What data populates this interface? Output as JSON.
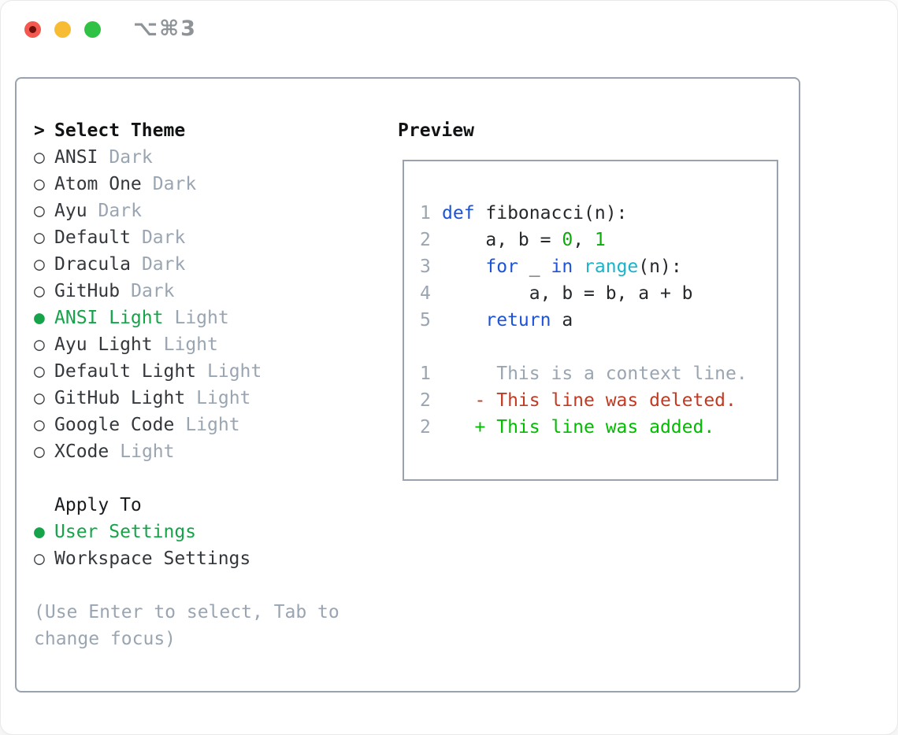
{
  "window": {
    "shortcut_label": "⌥⌘3"
  },
  "traffic_lights": {
    "close_color": "#f3594f",
    "minimize_color": "#f8bb34",
    "maximize_color": "#2fc245"
  },
  "colors": {
    "panel_border": "#99a3af",
    "accent_green": "#16a34a",
    "muted_gray": "#9aa5b2",
    "keyword_blue": "#1d53d8",
    "builtin_cyan": "#1ab3c9",
    "number_green": "#0cab0c",
    "diff_red": "#c23a22",
    "diff_add_green": "#00bd00"
  },
  "theme_panel": {
    "prompt": ">",
    "title": "Select Theme",
    "items": [
      {
        "bullet": "○",
        "name": "ANSI",
        "variant": "Dark",
        "selected": false
      },
      {
        "bullet": "○",
        "name": "Atom One",
        "variant": "Dark",
        "selected": false
      },
      {
        "bullet": "○",
        "name": "Ayu",
        "variant": "Dark",
        "selected": false
      },
      {
        "bullet": "○",
        "name": "Default",
        "variant": "Dark",
        "selected": false
      },
      {
        "bullet": "○",
        "name": "Dracula",
        "variant": "Dark",
        "selected": false
      },
      {
        "bullet": "○",
        "name": "GitHub",
        "variant": "Dark",
        "selected": false
      },
      {
        "bullet": "●",
        "name": "ANSI Light",
        "variant": "Light",
        "selected": true
      },
      {
        "bullet": "○",
        "name": "Ayu Light",
        "variant": "Light",
        "selected": false
      },
      {
        "bullet": "○",
        "name": "Default Light",
        "variant": "Light",
        "selected": false
      },
      {
        "bullet": "○",
        "name": "GitHub Light",
        "variant": "Light",
        "selected": false
      },
      {
        "bullet": "○",
        "name": "Google Code",
        "variant": "Light",
        "selected": false
      },
      {
        "bullet": "○",
        "name": "XCode",
        "variant": "Light",
        "selected": false
      }
    ]
  },
  "apply_panel": {
    "title": "Apply To",
    "items": [
      {
        "bullet": "●",
        "label": "User Settings",
        "selected": true
      },
      {
        "bullet": "○",
        "label": "Workspace Settings",
        "selected": false
      }
    ]
  },
  "help": {
    "lines": [
      "(Use Enter to select, Tab to",
      "change focus)"
    ]
  },
  "preview": {
    "title": "Preview",
    "lines": [
      {
        "gutter": "1",
        "tokens": [
          {
            "c": "kw",
            "t": "def"
          },
          {
            "c": "fg",
            "t": " fibonacci(n):"
          }
        ]
      },
      {
        "gutter": "2",
        "tokens": [
          {
            "c": "fg",
            "t": "    a, b = "
          },
          {
            "c": "num",
            "t": "0"
          },
          {
            "c": "fg",
            "t": ", "
          },
          {
            "c": "num",
            "t": "1"
          }
        ]
      },
      {
        "gutter": "3",
        "tokens": [
          {
            "c": "fg",
            "t": "    "
          },
          {
            "c": "kw",
            "t": "for"
          },
          {
            "c": "fg",
            "t": " _ "
          },
          {
            "c": "kw",
            "t": "in"
          },
          {
            "c": "fg",
            "t": " "
          },
          {
            "c": "bi",
            "t": "range"
          },
          {
            "c": "fg",
            "t": "(n):"
          }
        ]
      },
      {
        "gutter": "4",
        "tokens": [
          {
            "c": "fg",
            "t": "        a, b = b, a + b"
          }
        ]
      },
      {
        "gutter": "5",
        "tokens": [
          {
            "c": "fg",
            "t": "    "
          },
          {
            "c": "kw",
            "t": "return"
          },
          {
            "c": "fg",
            "t": " a"
          }
        ]
      },
      {
        "gutter": "",
        "tokens": []
      },
      {
        "gutter": "1",
        "tokens": [
          {
            "c": "ctx",
            "t": "     This is a context line."
          }
        ]
      },
      {
        "gutter": "2",
        "tokens": [
          {
            "c": "del",
            "t": "   - This line was deleted."
          }
        ]
      },
      {
        "gutter": "2",
        "tokens": [
          {
            "c": "add",
            "t": "   + This line was added."
          }
        ]
      }
    ]
  }
}
